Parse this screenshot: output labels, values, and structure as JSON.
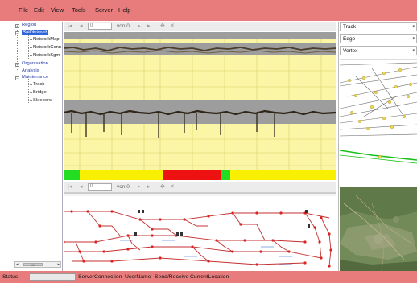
{
  "menu": {
    "items": [
      "File",
      "Edit",
      "View",
      "Tools",
      "Server",
      "Help"
    ]
  },
  "tree": {
    "region": "Region",
    "rail_network": "RailNetwork",
    "network_map": "NetworkMap",
    "network_conn": "NetworkConn",
    "network_sgm": "NetworkSgm",
    "organisation": "Organisation",
    "analysis": "Analysis",
    "maintenance": "Maintenance",
    "track": "Track",
    "bridge": "Bridge",
    "sleepers": "Sleepers",
    "scroll_thumb": "III"
  },
  "top_toolbar": {
    "page_field": "0",
    "page_label": "von 0"
  },
  "bottom_toolbar": {
    "page_field": "0",
    "page_label": "von 0"
  },
  "right_panel": {
    "combo_track": "Track",
    "combo_edge": "Edge",
    "combo_vertex": "Vertex"
  },
  "status": {
    "label": "Status",
    "server_connection": "ServerConnection",
    "user_name": "UserName",
    "send_receive": "Send/Receive",
    "current_location": "CurrentLocation"
  },
  "colors": {
    "chrome_bar": "#e87c7c",
    "plot_background": "#fbf5a6",
    "status_green": "#22dd22",
    "status_red": "#ee1111",
    "status_yellow": "#f8f000",
    "network_node": "#dd2222",
    "tree_selection": "#2f63d8"
  }
}
